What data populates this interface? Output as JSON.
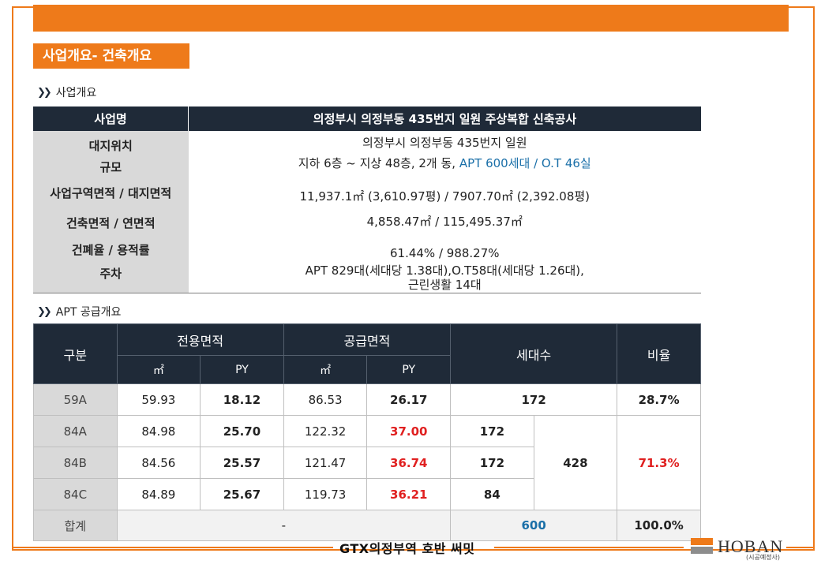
{
  "title": "사업개요- 건축개요",
  "section1": {
    "heading": "사업개요"
  },
  "overview": {
    "header_label": "사업명",
    "header_value": "의정부시 의정부동 435번지 일원 주상복합 신축공사",
    "labels": [
      "대지위치",
      "규모",
      "사업구역면적 / 대지면적",
      "건축면적 / 연면적",
      "건폐율 / 용적률",
      "주차"
    ],
    "location": "의정부시 의정부동 435번지 일원",
    "scale_prefix": "지하 6층 ~ 지상 48층, 2개 동,",
    "scale_highlight": "APT 600세대 / O.T 46실",
    "area": "11,937.1㎡ (3,610.97평) / 7907.70㎡ (2,392.08평)",
    "building_area": "4,858.47㎡ / 115,495.37㎡",
    "ratio": "61.44% / 988.27%",
    "parking_line1": "APT 829대(세대당 1.38대),O.T58대(세대당 1.26대),",
    "parking_line2": "근린생활 14대"
  },
  "section2": {
    "heading": "APT 공급개요"
  },
  "supply": {
    "headers": {
      "type": "구분",
      "exclusive": "전용면적",
      "supply": "공급면적",
      "households": "세대수",
      "ratio": "비율",
      "m2": "㎡",
      "py": "PY"
    },
    "rows": [
      {
        "type": "59A",
        "ex_m2": "59.93",
        "ex_py": "18.12",
        "sp_m2": "86.53",
        "sp_py": "26.17",
        "households": "172",
        "ratio": "28.7%"
      },
      {
        "type": "84A",
        "ex_m2": "84.98",
        "ex_py": "25.70",
        "sp_m2": "122.32",
        "sp_py": "37.00",
        "households": "172"
      },
      {
        "type": "84B",
        "ex_m2": "84.56",
        "ex_py": "25.57",
        "sp_m2": "121.47",
        "sp_py": "36.74",
        "households": "172"
      },
      {
        "type": "84C",
        "ex_m2": "84.89",
        "ex_py": "25.67",
        "sp_m2": "119.73",
        "sp_py": "36.21",
        "households": "84"
      }
    ],
    "group_households": "428",
    "group_ratio": "71.3%",
    "total": {
      "label": "합계",
      "dash": "-",
      "households": "600",
      "ratio": "100.0%"
    }
  },
  "footer": {
    "text": "GTX의정부역 호반 써밋",
    "logo": "HOBAN",
    "logo_sub": "(시공예정사)"
  },
  "colors": {
    "accent": "#ee7a1a",
    "header": "#1f2a38",
    "highlight_blue": "#1a6fa8",
    "highlight_red": "#e02020"
  }
}
